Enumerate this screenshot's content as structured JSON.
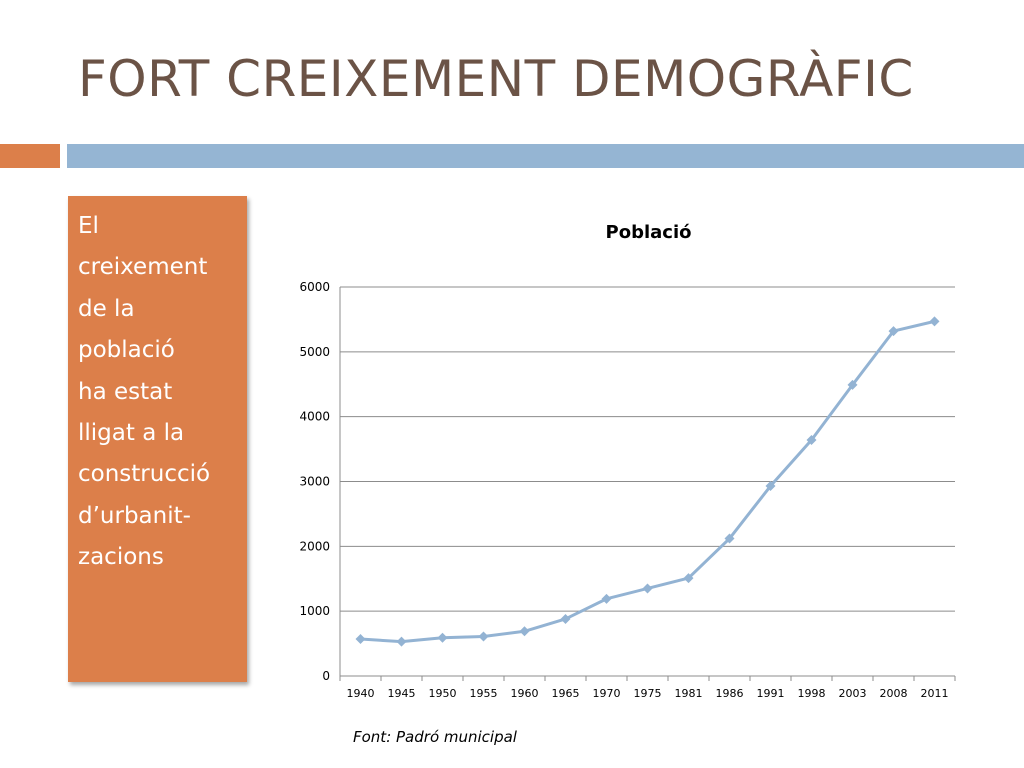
{
  "slide": {
    "title": "FORT CREIXEMENT DEMOGRÀFIC",
    "side_text": [
      "El",
      "creixement",
      "de la",
      "població",
      "ha estat",
      "lligat a la",
      "construcció",
      "d’urbanit-",
      "zacions"
    ],
    "source": "Font: Padró municipal"
  },
  "colors": {
    "title": "#6b5346",
    "accent_orange": "#dc7f4a",
    "accent_blue": "#95b5d3",
    "series_line": "#93b3d3",
    "gridline": "#8c8c8c"
  },
  "chart_data": {
    "type": "line",
    "title": "Població",
    "xlabel": "",
    "ylabel": "",
    "categories": [
      "1940",
      "1945",
      "1950",
      "1955",
      "1960",
      "1965",
      "1970",
      "1975",
      "1981",
      "1986",
      "1991",
      "1998",
      "2003",
      "2008",
      "2011"
    ],
    "series": [
      {
        "values": [
          570,
          530,
          590,
          610,
          690,
          880,
          1190,
          1350,
          1510,
          2120,
          2930,
          3640,
          4490,
          5320,
          5470
        ]
      }
    ],
    "ylim": [
      0,
      6000
    ],
    "yticks": [
      0,
      1000,
      2000,
      3000,
      4000,
      5000,
      6000
    ],
    "grid": true,
    "legend": "none",
    "marker": "diamond"
  }
}
